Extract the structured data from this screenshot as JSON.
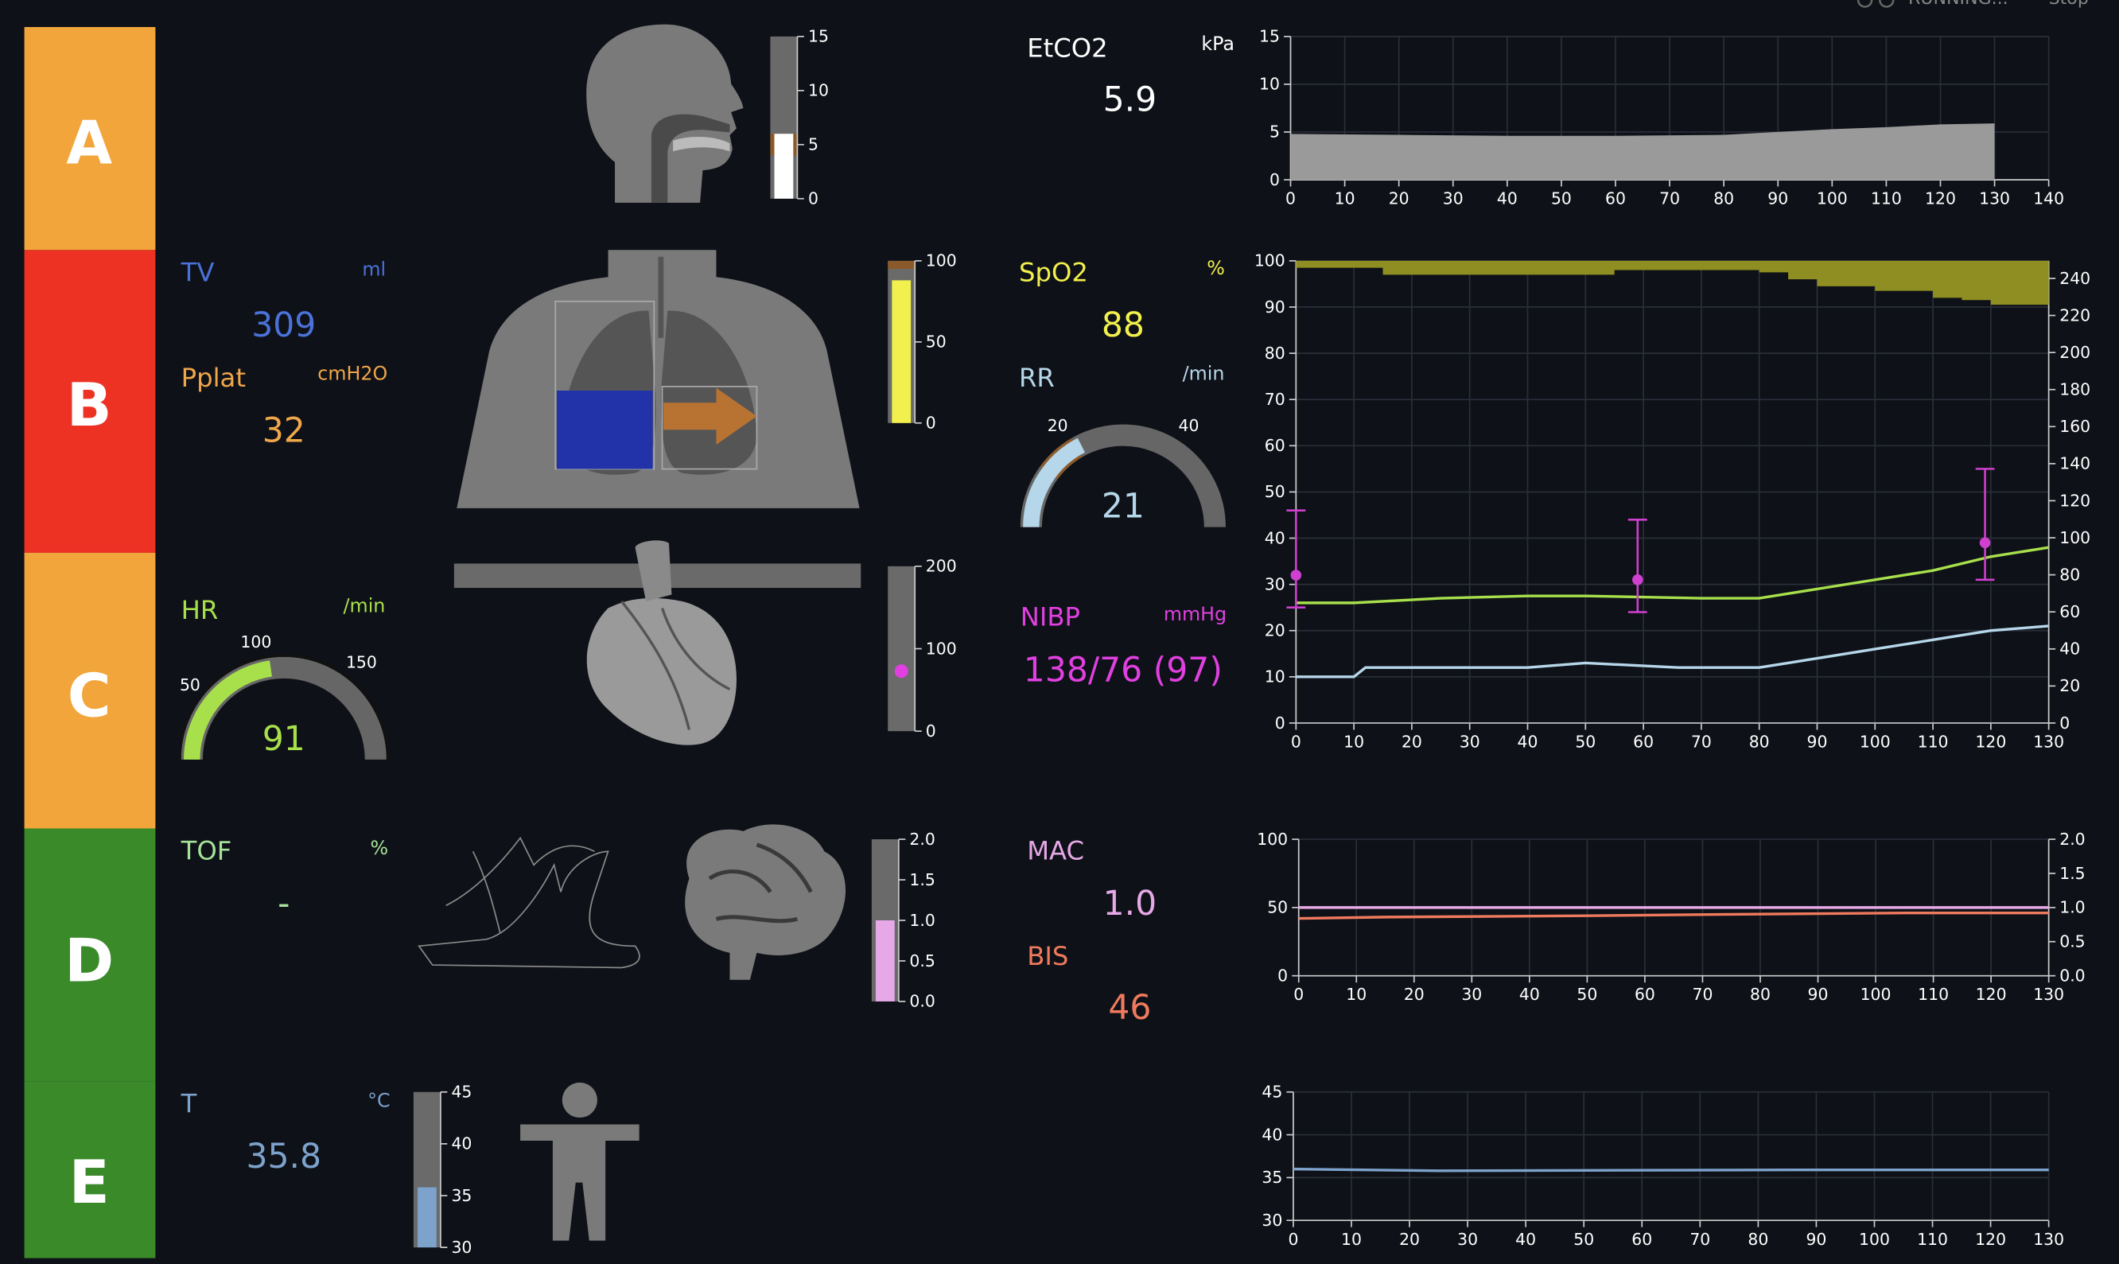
{
  "header": {
    "running_label": "RUNNING...",
    "stop_label": "Stop"
  },
  "sections": [
    {
      "letter": "A",
      "color": "#f2a53b"
    },
    {
      "letter": "B",
      "color": "#ed3224"
    },
    {
      "letter": "C",
      "color": "#f2a53b"
    },
    {
      "letter": "D",
      "color": "#3a8a2a"
    },
    {
      "letter": "E",
      "color": "#3a8a2a"
    }
  ],
  "vitals": {
    "tv": {
      "label": "TV",
      "unit": "ml",
      "value": "309",
      "color": "#4a72d9"
    },
    "pplat": {
      "label": "Pplat",
      "unit": "cmH2O",
      "value": "32",
      "color": "#f0a64a"
    },
    "hr": {
      "label": "HR",
      "unit": "/min",
      "value": "91",
      "color": "#a8e04c",
      "gauge": {
        "ticks": [
          "50",
          "100",
          "150"
        ],
        "value": 91,
        "min": 0,
        "max": 200,
        "range_low": 50,
        "range_high": 100
      }
    },
    "tof": {
      "label": "TOF",
      "unit": "%",
      "value": "-",
      "color": "#a6e39a"
    },
    "temp": {
      "label": "T",
      "unit": "°C",
      "value": "35.8",
      "color": "#7da2cc"
    },
    "etco2": {
      "label": "EtCO2",
      "unit": "kPa",
      "value": "5.9",
      "color": "#ffffff"
    },
    "spo2": {
      "label": "SpO2",
      "unit": "%",
      "value": "88",
      "color": "#f2f04d"
    },
    "rr": {
      "label": "RR",
      "unit": "/min",
      "value": "21",
      "color": "#b6d7ea",
      "gauge": {
        "ticks": [
          "20",
          "40"
        ],
        "value": 21,
        "min": 0,
        "max": 60,
        "range_low": 12,
        "range_high": 20
      }
    },
    "nibp": {
      "label": "NIBP",
      "unit": "mmHg",
      "value": "138/76 (97)",
      "color": "#e040e0"
    },
    "mac": {
      "label": "MAC",
      "value": "1.0",
      "color": "#e6a8e6"
    },
    "bis": {
      "label": "BIS",
      "value": "46",
      "color": "#f07a5e"
    }
  },
  "bars": {
    "airway": {
      "ticks": [
        "15",
        "10",
        "5",
        "0"
      ],
      "max": 15,
      "value": 6,
      "normal_low": 4,
      "normal_high": 6
    },
    "spo2": {
      "ticks": [
        "100",
        "50",
        "0"
      ],
      "max": 100,
      "value": 88,
      "normal_low": 95,
      "normal_high": 100
    },
    "hr": {
      "ticks": [
        "200",
        "100",
        "0"
      ],
      "max": 250,
      "value": 91
    },
    "mac": {
      "ticks": [
        "2.0",
        "1.5",
        "1.0",
        "0.5",
        "0.0"
      ],
      "max": 2,
      "value": 1.0
    },
    "temp": {
      "ticks": [
        "45",
        "40",
        "35",
        "30"
      ],
      "min": 30,
      "max": 45,
      "value": 35.8
    }
  },
  "chart_data": [
    {
      "type": "area",
      "title": "",
      "series": [
        {
          "name": "EtCO2",
          "color": "#9a9a9a",
          "x": [
            0,
            20,
            40,
            60,
            80,
            90,
            100,
            110,
            120,
            130
          ],
          "y": [
            4.8,
            4.7,
            4.6,
            4.6,
            4.7,
            5.0,
            5.3,
            5.5,
            5.8,
            5.9
          ]
        }
      ],
      "xlim": [
        0,
        140
      ],
      "ylim": [
        0,
        15
      ],
      "xticks": [
        "0",
        "10",
        "20",
        "30",
        "40",
        "50",
        "60",
        "70",
        "80",
        "90",
        "100",
        "110",
        "120",
        "130",
        "140"
      ],
      "yticks": [
        "15",
        "10",
        "5",
        "0"
      ]
    },
    {
      "type": "line",
      "title": "",
      "xlim": [
        0,
        130
      ],
      "ylim": [
        0,
        100
      ],
      "y2lim": [
        0,
        250
      ],
      "xticks": [
        "0",
        "10",
        "20",
        "30",
        "40",
        "50",
        "60",
        "70",
        "80",
        "90",
        "100",
        "110",
        "120",
        "130"
      ],
      "yticks": [
        "100",
        "90",
        "80",
        "70",
        "60",
        "50",
        "40",
        "30",
        "20",
        "10",
        "0"
      ],
      "y2ticks": [
        "240",
        "220",
        "200",
        "180",
        "160",
        "140",
        "120",
        "100",
        "80",
        "60",
        "40",
        "20",
        "0"
      ],
      "series": [
        {
          "name": "SpO2",
          "color": "#8e8e22",
          "type": "area-top",
          "x": [
            0,
            15,
            55,
            80,
            85,
            90,
            100,
            110,
            115,
            120,
            130
          ],
          "y": [
            98.5,
            97,
            98,
            97.5,
            96,
            94.5,
            93.5,
            92,
            91.5,
            90.5,
            89
          ]
        },
        {
          "name": "HR",
          "color": "#a8e04c",
          "x": [
            0,
            10,
            25,
            40,
            50,
            70,
            80,
            90,
            100,
            110,
            120,
            130
          ],
          "y": [
            26,
            26,
            27,
            27.5,
            27.5,
            27,
            27,
            29,
            31,
            33,
            36,
            38
          ]
        },
        {
          "name": "RR",
          "color": "#b6d7ea",
          "x": [
            0,
            10,
            12,
            40,
            50,
            66,
            80,
            85,
            90,
            100,
            110,
            120,
            130
          ],
          "y": [
            10,
            10,
            12,
            12,
            13,
            12,
            12,
            13,
            14,
            16,
            18,
            20,
            21
          ]
        },
        {
          "name": "NIBP",
          "color": "#d040d0",
          "type": "errorbar",
          "x": [
            0,
            59,
            119
          ],
          "mean": [
            32,
            31,
            39
          ],
          "low": [
            25,
            24,
            31
          ],
          "high": [
            46,
            44,
            55
          ]
        }
      ]
    },
    {
      "type": "line",
      "title": "",
      "xlim": [
        0,
        130
      ],
      "ylim": [
        0,
        100
      ],
      "y2lim": [
        0,
        2
      ],
      "xticks": [
        "0",
        "10",
        "20",
        "30",
        "40",
        "50",
        "60",
        "70",
        "80",
        "90",
        "100",
        "110",
        "120",
        "130"
      ],
      "yticks": [
        "100",
        "50",
        "0"
      ],
      "y2ticks": [
        "2.0",
        "1.5",
        "1.0",
        "0.5",
        "0.0"
      ],
      "series": [
        {
          "name": "MAC",
          "color": "#e6a8e6",
          "x": [
            0,
            130
          ],
          "y": [
            1.0,
            1.0
          ],
          "axis": "y2"
        },
        {
          "name": "BIS",
          "color": "#f07a5e",
          "x": [
            0,
            15,
            50,
            75,
            105,
            130
          ],
          "y": [
            42,
            43,
            44,
            45,
            46,
            46
          ]
        }
      ]
    },
    {
      "type": "line",
      "title": "",
      "xlim": [
        0,
        130
      ],
      "ylim": [
        30,
        45
      ],
      "xticks": [
        "0",
        "10",
        "20",
        "30",
        "40",
        "50",
        "60",
        "70",
        "80",
        "90",
        "100",
        "110",
        "120",
        "130"
      ],
      "yticks": [
        "45",
        "40",
        "35",
        "30"
      ],
      "series": [
        {
          "name": "T",
          "color": "#7da2cc",
          "x": [
            0,
            25,
            86,
            130
          ],
          "y": [
            36.0,
            35.8,
            35.9,
            35.9
          ]
        }
      ]
    }
  ]
}
